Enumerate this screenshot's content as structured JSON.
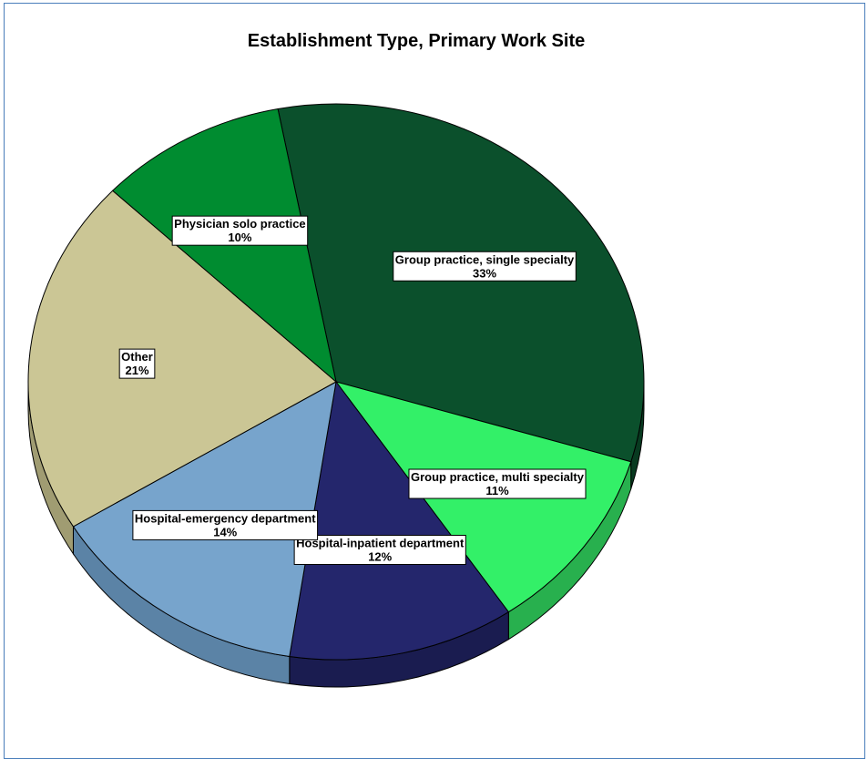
{
  "chart_data": {
    "type": "pie",
    "title": "Establishment Type, Primary Work Site",
    "slices": [
      {
        "label": "Group practice, single specialty",
        "value": 33,
        "value_label": "33%",
        "color": "#0b502c",
        "side_color": "#083a20"
      },
      {
        "label": "Group practice, multi specialty",
        "value": 11,
        "value_label": "11%",
        "color": "#33f068",
        "side_color": "#28b04e"
      },
      {
        "label": "Hospital-inpatient department",
        "value": 12,
        "value_label": "12%",
        "color": "#24266c",
        "side_color": "#1a1c50"
      },
      {
        "label": "Hospital-emergency department",
        "value": 14,
        "value_label": "14%",
        "color": "#77a4cc",
        "side_color": "#5b83a6"
      },
      {
        "label": "Other",
        "value": 21,
        "value_label": "21%",
        "color": "#cbc695",
        "side_color": "#a09c72"
      },
      {
        "label": "Physician solo practice",
        "value": 10,
        "value_label": "10%",
        "color": "#008c30",
        "side_color": "#006a24"
      }
    ]
  }
}
